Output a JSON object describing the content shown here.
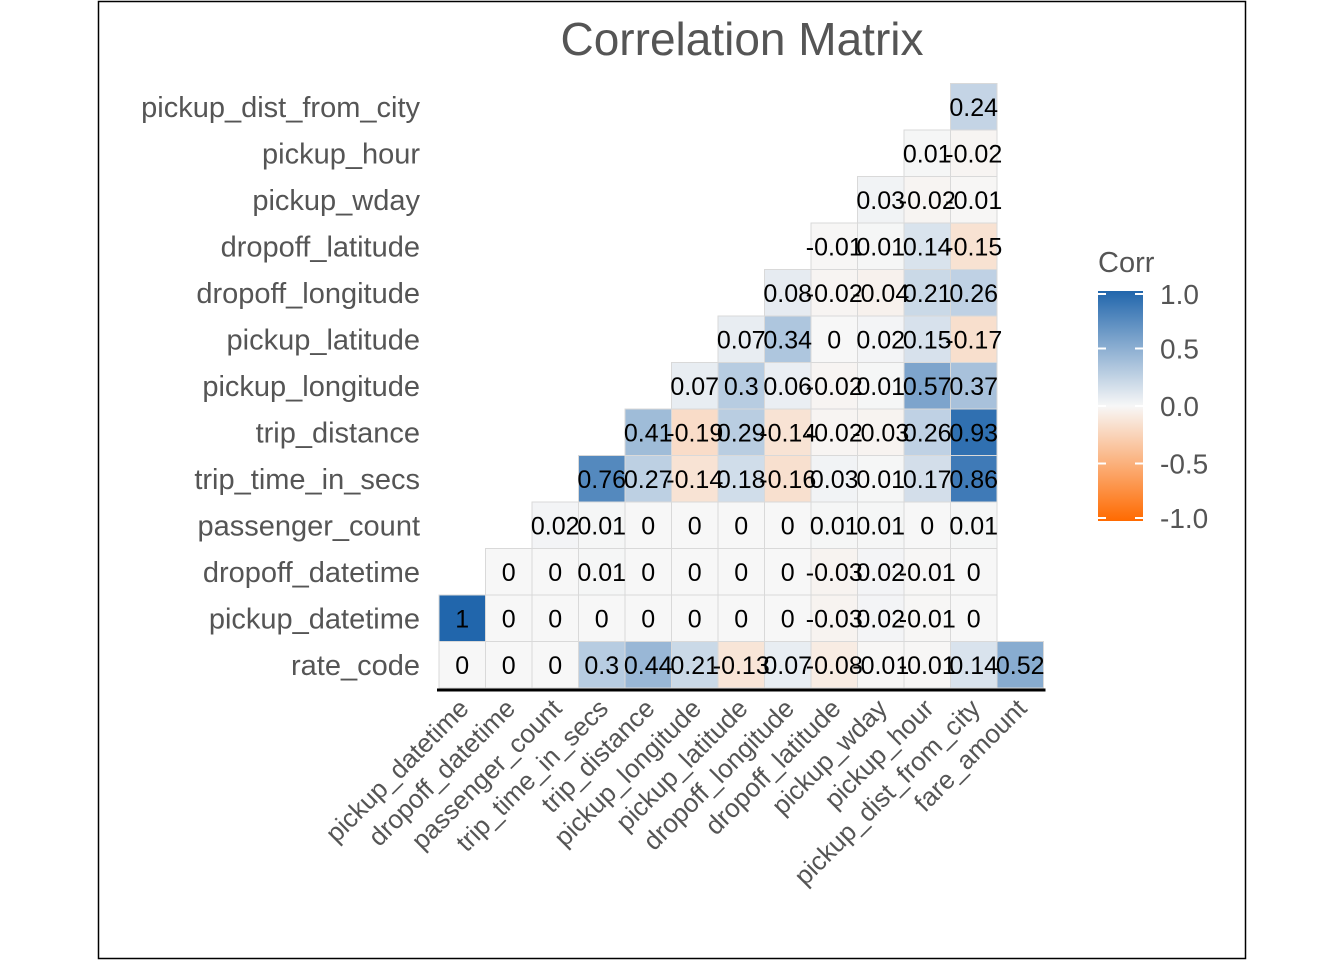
{
  "chart_data": {
    "type": "heatmap",
    "title": "Correlation Matrix",
    "x_categories": [
      "pickup_datetime",
      "dropoff_datetime",
      "passenger_count",
      "trip_time_in_secs",
      "trip_distance",
      "pickup_longitude",
      "pickup_latitude",
      "dropoff_longitude",
      "dropoff_latitude",
      "pickup_wday",
      "pickup_hour",
      "pickup_dist_from_city",
      "fare_amount"
    ],
    "y_categories": [
      "rate_code",
      "pickup_datetime",
      "dropoff_datetime",
      "passenger_count",
      "trip_time_in_secs",
      "trip_distance",
      "pickup_longitude",
      "pickup_latitude",
      "dropoff_longitude",
      "dropoff_latitude",
      "pickup_wday",
      "pickup_hour",
      "pickup_dist_from_city"
    ],
    "values": [
      [
        0,
        0,
        0,
        0.3,
        0.44,
        0.21,
        -0.13,
        0.07,
        -0.08,
        -0.01,
        -0.01,
        0.14,
        0.52
      ],
      [
        1,
        0,
        0,
        0,
        0,
        0,
        0,
        0,
        -0.03,
        0.02,
        -0.01,
        0
      ],
      [
        0,
        0,
        0.01,
        0,
        0,
        0,
        0,
        -0.03,
        0.02,
        -0.01,
        0
      ],
      [
        0.02,
        0.01,
        0,
        0,
        0,
        0,
        0.01,
        0.01,
        0,
        0.01
      ],
      [
        0.76,
        0.27,
        -0.14,
        0.18,
        -0.16,
        0.03,
        0.01,
        0.17,
        0.86
      ],
      [
        0.41,
        -0.19,
        0.29,
        -0.14,
        -0.02,
        -0.03,
        0.26,
        0.93
      ],
      [
        0.07,
        0.3,
        0.06,
        -0.02,
        0.01,
        0.57,
        0.37
      ],
      [
        0.07,
        0.34,
        0,
        0.02,
        0.15,
        -0.17
      ],
      [
        0.08,
        -0.02,
        -0.04,
        0.21,
        0.26
      ],
      [
        -0.01,
        0.01,
        0.14,
        -0.15
      ],
      [
        0.03,
        -0.02,
        -0.01
      ],
      [
        0.01,
        -0.02
      ],
      [
        0.24
      ]
    ],
    "value_labels": [
      [
        "0",
        "0",
        "0",
        "0.3",
        "0.44",
        "0.21",
        "-0.13",
        "0.07",
        "-0.08",
        "-0.01",
        "-0.01",
        "0.14",
        "0.52"
      ],
      [
        "1",
        "0",
        "0",
        "0",
        "0",
        "0",
        "0",
        "0",
        "-0.03",
        "0.02",
        "-0.01",
        "0"
      ],
      [
        "0",
        "0",
        "0.01",
        "0",
        "0",
        "0",
        "0",
        "-0.03",
        "0.02",
        "-0.01",
        "0"
      ],
      [
        "0.02",
        "0.01",
        "0",
        "0",
        "0",
        "0",
        "0.01",
        "0.01",
        "0",
        "0.01"
      ],
      [
        "0.76",
        "0.27",
        "-0.14",
        "0.18",
        "-0.16",
        "0.03",
        "0.01",
        "0.17",
        "0.86"
      ],
      [
        "0.41",
        "-0.19",
        "0.29",
        "-0.14",
        "-0.02",
        "-0.03",
        "0.26",
        "0.93"
      ],
      [
        "0.07",
        "0.3",
        "0.06",
        "-0.02",
        "0.01",
        "0.57",
        "0.37"
      ],
      [
        "0.07",
        "0.34",
        "0",
        "0.02",
        "0.15",
        "-0.17"
      ],
      [
        "0.08",
        "-0.02",
        "-0.04",
        "0.21",
        "0.26"
      ],
      [
        "-0.01",
        "0.01",
        "0.14",
        "-0.15"
      ],
      [
        "0.03",
        "-0.02",
        "-0.01"
      ],
      [
        "0.01",
        "-0.02"
      ],
      [
        "0.24"
      ]
    ],
    "color_range": [
      -1,
      1
    ],
    "colors": {
      "high": "#2166ac",
      "mid": "#f7f7f7",
      "low": "#ff6a00",
      "grid": "#d9d9d9",
      "axis": "#000000"
    },
    "legend": {
      "title": "Corr",
      "ticks": [
        1.0,
        0.5,
        0.0,
        -0.5,
        -1.0
      ],
      "tick_labels": [
        "1.0",
        "0.5",
        "0.0",
        "-0.5",
        "-1.0"
      ],
      "position": "right"
    }
  }
}
